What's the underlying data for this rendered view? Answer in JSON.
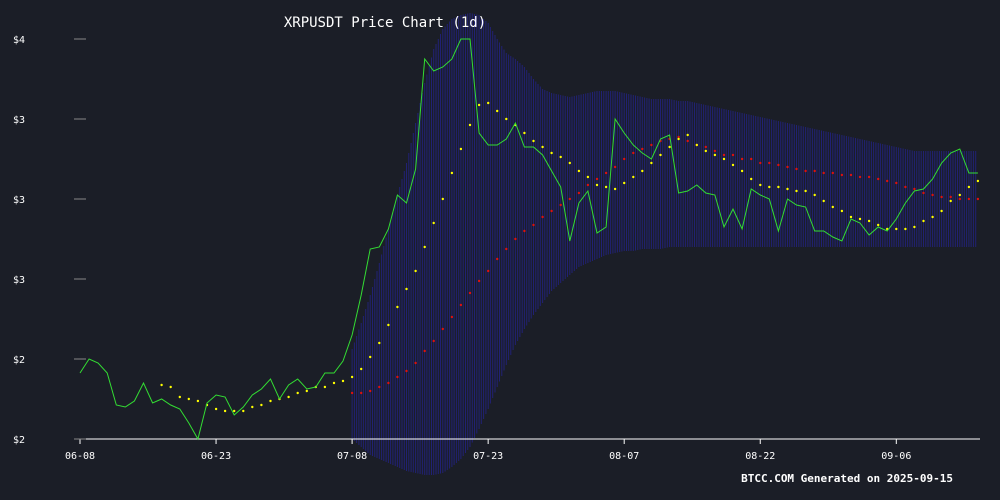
{
  "chart_data": {
    "type": "line",
    "title": "XRPUSDT Price Chart (1d)",
    "footer": "BTCC.COM Generated on 2025-09-15",
    "xlabel": "",
    "ylabel": "",
    "ylim": [
      2.0,
      4.0
    ],
    "x_ticks": [
      {
        "label": "06-08",
        "day": 0
      },
      {
        "label": "06-23",
        "day": 15
      },
      {
        "label": "07-08",
        "day": 30
      },
      {
        "label": "07-23",
        "day": 45
      },
      {
        "label": "08-07",
        "day": 60
      },
      {
        "label": "08-22",
        "day": 75
      },
      {
        "label": "09-06",
        "day": 90
      }
    ],
    "y_ticks": [
      {
        "label": "$2",
        "value": 2.0
      },
      {
        "label": "$2",
        "value": 2.4
      },
      {
        "label": "$3",
        "value": 2.8
      },
      {
        "label": "$3",
        "value": 3.2
      },
      {
        "label": "$3",
        "value": 3.6
      },
      {
        "label": "$4",
        "value": 4.0
      }
    ],
    "colors": {
      "background": "#1b1e27",
      "price": "#33dd33",
      "ma_short": "#ffff00",
      "ma_long": "#dd1111",
      "band": "#23238f"
    },
    "series": [
      {
        "type": "line",
        "values": [
          2.33,
          2.4,
          2.38,
          2.33,
          2.17,
          2.16,
          2.19,
          2.28,
          2.18,
          2.2,
          2.17,
          2.15,
          2.08,
          2.0,
          2.18,
          2.22,
          2.21,
          2.12,
          2.16,
          2.22,
          2.25,
          2.3,
          2.2,
          2.27,
          2.3,
          2.25,
          2.26,
          2.33,
          2.33,
          2.39,
          2.52,
          2.72,
          2.95,
          2.96,
          3.05,
          3.22,
          3.18,
          3.35,
          3.9,
          3.84,
          3.86,
          3.9,
          4.0,
          4.0,
          3.53,
          3.47,
          3.47,
          3.5,
          3.58,
          3.46,
          3.46,
          3.42,
          3.34,
          3.26,
          2.99,
          3.18,
          3.24,
          3.03,
          3.06,
          3.6,
          3.53,
          3.47,
          3.43,
          3.4,
          3.5,
          3.52,
          3.23,
          3.24,
          3.27,
          3.23,
          3.22,
          3.06,
          3.15,
          3.05,
          3.25,
          3.22,
          3.2,
          3.04,
          3.2,
          3.17,
          3.16,
          3.04,
          3.04,
          3.01,
          2.99,
          3.1,
          3.08,
          3.02,
          3.06,
          3.04,
          3.1,
          3.18,
          3.24,
          3.25,
          3.3,
          3.38,
          3.43,
          3.45,
          3.33,
          3.33
        ]
      },
      {
        "type": "dotted",
        "values": [
          null,
          null,
          null,
          null,
          null,
          null,
          null,
          null,
          null,
          2.27,
          2.26,
          2.21,
          2.2,
          2.19,
          2.17,
          2.15,
          2.14,
          2.14,
          2.14,
          2.16,
          2.17,
          2.19,
          2.2,
          2.21,
          2.23,
          2.24,
          2.26,
          2.26,
          2.28,
          2.29,
          2.31,
          2.35,
          2.41,
          2.48,
          2.57,
          2.66,
          2.75,
          2.84,
          2.96,
          3.08,
          3.2,
          3.33,
          3.45,
          3.57,
          3.67,
          3.68,
          3.64,
          3.6,
          3.57,
          3.53,
          3.49,
          3.46,
          3.43,
          3.41,
          3.38,
          3.34,
          3.31,
          3.27,
          3.26,
          3.25,
          3.28,
          3.31,
          3.34,
          3.38,
          3.42,
          3.46,
          3.5,
          3.52,
          3.47,
          3.44,
          3.42,
          3.4,
          3.37,
          3.34,
          3.3,
          3.27,
          3.26,
          3.26,
          3.25,
          3.24,
          3.24,
          3.22,
          3.19,
          3.16,
          3.14,
          3.11,
          3.1,
          3.09,
          3.07,
          3.05,
          3.05,
          3.05,
          3.06,
          3.09,
          3.11,
          3.14,
          3.19,
          3.22,
          3.26,
          3.29
        ]
      },
      {
        "type": "dotted",
        "values": [
          null,
          null,
          null,
          null,
          null,
          null,
          null,
          null,
          null,
          null,
          null,
          null,
          null,
          null,
          null,
          null,
          null,
          null,
          null,
          null,
          null,
          null,
          null,
          null,
          null,
          null,
          null,
          null,
          null,
          null,
          2.23,
          2.23,
          2.24,
          2.26,
          2.28,
          2.31,
          2.34,
          2.38,
          2.44,
          2.49,
          2.55,
          2.61,
          2.67,
          2.73,
          2.79,
          2.84,
          2.9,
          2.95,
          3.0,
          3.04,
          3.07,
          3.11,
          3.14,
          3.17,
          3.2,
          3.23,
          3.27,
          3.3,
          3.33,
          3.36,
          3.4,
          3.43,
          3.45,
          3.47,
          3.49,
          3.5,
          3.51,
          3.49,
          3.47,
          3.46,
          3.44,
          3.42,
          3.42,
          3.4,
          3.4,
          3.38,
          3.38,
          3.37,
          3.36,
          3.35,
          3.34,
          3.34,
          3.33,
          3.33,
          3.32,
          3.32,
          3.31,
          3.31,
          3.3,
          3.29,
          3.28,
          3.26,
          3.25,
          3.23,
          3.22,
          3.21,
          3.21,
          3.2,
          3.2,
          3.2
        ]
      }
    ],
    "band": {
      "upper": [
        null,
        null,
        null,
        null,
        null,
        null,
        null,
        null,
        null,
        null,
        null,
        null,
        null,
        null,
        null,
        null,
        null,
        null,
        null,
        null,
        null,
        null,
        null,
        null,
        null,
        null,
        null,
        null,
        null,
        null,
        2.45,
        2.58,
        2.72,
        2.88,
        3.05,
        3.22,
        3.38,
        3.58,
        3.78,
        3.95,
        4.05,
        4.1,
        4.12,
        4.13,
        4.12,
        4.08,
        4.0,
        3.93,
        3.9,
        3.86,
        3.8,
        3.75,
        3.73,
        3.72,
        3.71,
        3.72,
        3.73,
        3.74,
        3.74,
        3.74,
        3.73,
        3.72,
        3.71,
        3.7,
        3.7,
        3.7,
        3.69,
        3.69,
        3.68,
        3.67,
        3.66,
        3.65,
        3.64,
        3.63,
        3.62,
        3.61,
        3.6,
        3.59,
        3.58,
        3.57,
        3.56,
        3.55,
        3.54,
        3.53,
        3.52,
        3.51,
        3.5,
        3.49,
        3.48,
        3.47,
        3.46,
        3.45,
        3.44,
        3.44,
        3.44,
        3.44,
        3.44,
        3.44,
        3.44,
        3.44
      ],
      "lower": [
        null,
        null,
        null,
        null,
        null,
        null,
        null,
        null,
        null,
        null,
        null,
        null,
        null,
        null,
        null,
        null,
        null,
        null,
        null,
        null,
        null,
        null,
        null,
        null,
        null,
        null,
        null,
        null,
        null,
        null,
        2.0,
        1.96,
        1.92,
        1.9,
        1.88,
        1.86,
        1.84,
        1.83,
        1.82,
        1.82,
        1.83,
        1.86,
        1.9,
        1.96,
        2.05,
        2.15,
        2.26,
        2.37,
        2.47,
        2.55,
        2.62,
        2.68,
        2.74,
        2.78,
        2.82,
        2.86,
        2.88,
        2.9,
        2.92,
        2.93,
        2.94,
        2.94,
        2.95,
        2.95,
        2.95,
        2.96,
        2.96,
        2.96,
        2.96,
        2.96,
        2.96,
        2.96,
        2.96,
        2.96,
        2.96,
        2.96,
        2.96,
        2.96,
        2.96,
        2.96,
        2.96,
        2.96,
        2.96,
        2.96,
        2.96,
        2.96,
        2.96,
        2.96,
        2.96,
        2.96,
        2.96,
        2.96,
        2.96,
        2.96,
        2.96,
        2.96,
        2.96,
        2.96,
        2.96,
        2.96
      ]
    }
  }
}
